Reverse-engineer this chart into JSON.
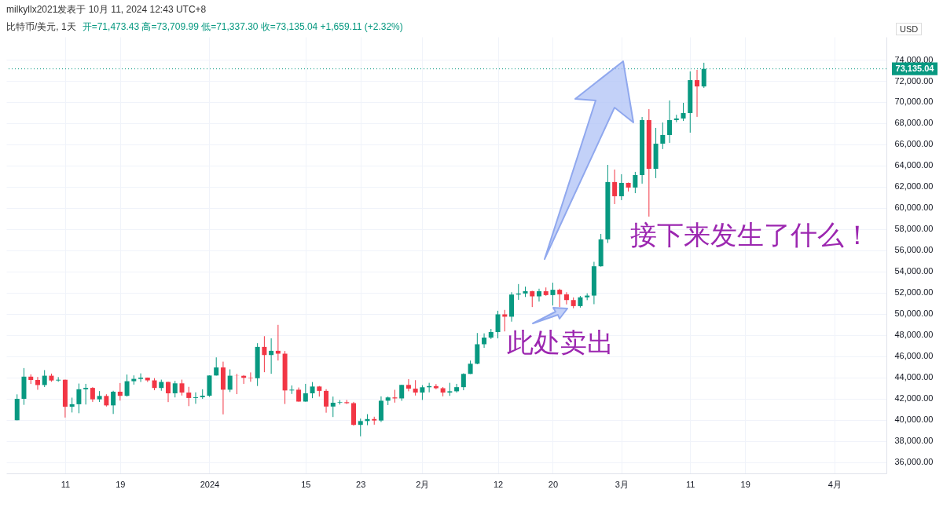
{
  "chart_data": {
    "type": "candlestick",
    "title": "比特币/美元, 1天",
    "subtitle": "开=71,473.43 高=73,709.99 低=71,337.30 收=73,135.04 +1,659.11 (+2.32%)",
    "ylabel": "USD",
    "annotations": [
      "milkyllx2021发表于 10月 11, 2024 12:43 UTC+8",
      "此处卖出",
      "接下来发生了什么！"
    ],
    "x": [
      "2023-12-04",
      "2023-12-05",
      "2023-12-06",
      "2023-12-07",
      "2023-12-08",
      "2023-12-09",
      "2023-12-10",
      "2023-12-11",
      "2023-12-12",
      "2023-12-13",
      "2023-12-14",
      "2023-12-15",
      "2023-12-16",
      "2023-12-17",
      "2023-12-18",
      "2023-12-19",
      "2023-12-20",
      "2023-12-21",
      "2023-12-22",
      "2023-12-23",
      "2023-12-24",
      "2023-12-25",
      "2023-12-26",
      "2023-12-27",
      "2023-12-28",
      "2023-12-29",
      "2023-12-30",
      "2023-12-31",
      "2024-01-01",
      "2024-01-02",
      "2024-01-03",
      "2024-01-04",
      "2024-01-05",
      "2024-01-06",
      "2024-01-07",
      "2024-01-08",
      "2024-01-09",
      "2024-01-10",
      "2024-01-11",
      "2024-01-12",
      "2024-01-13",
      "2024-01-14",
      "2024-01-15",
      "2024-01-16",
      "2024-01-17",
      "2024-01-18",
      "2024-01-19",
      "2024-01-20",
      "2024-01-21",
      "2024-01-22",
      "2024-01-23",
      "2024-01-24",
      "2024-01-25",
      "2024-01-26",
      "2024-01-27",
      "2024-01-28",
      "2024-01-29",
      "2024-01-30",
      "2024-01-31",
      "2024-02-01",
      "2024-02-02",
      "2024-02-03",
      "2024-02-04",
      "2024-02-05",
      "2024-02-06",
      "2024-02-07",
      "2024-02-08",
      "2024-02-09",
      "2024-02-10",
      "2024-02-11",
      "2024-02-12",
      "2024-02-13",
      "2024-02-14",
      "2024-02-15",
      "2024-02-16",
      "2024-02-17",
      "2024-02-18",
      "2024-02-19",
      "2024-02-20",
      "2024-02-21",
      "2024-02-22",
      "2024-02-23",
      "2024-02-24",
      "2024-02-25",
      "2024-02-26",
      "2024-02-27",
      "2024-02-28",
      "2024-02-29",
      "2024-03-01",
      "2024-03-02",
      "2024-03-03",
      "2024-03-04",
      "2024-03-05",
      "2024-03-06",
      "2024-03-07",
      "2024-03-08",
      "2024-03-09",
      "2024-03-10",
      "2024-03-11",
      "2024-03-12",
      "2024-03-13"
    ],
    "ohlc": [
      [
        39970,
        42410,
        39960,
        41990
      ],
      [
        41990,
        44890,
        41420,
        44080
      ],
      [
        44080,
        44300,
        43390,
        43770
      ],
      [
        43770,
        44050,
        42840,
        43290
      ],
      [
        43290,
        44700,
        43100,
        44170
      ],
      [
        44170,
        44370,
        43600,
        43720
      ],
      [
        43720,
        44040,
        43600,
        43790
      ],
      [
        43790,
        43800,
        40220,
        41240
      ],
      [
        41240,
        42100,
        40700,
        41480
      ],
      [
        41480,
        43430,
        40630,
        42890
      ],
      [
        42890,
        43400,
        41450,
        43020
      ],
      [
        43020,
        43090,
        41700,
        41940
      ],
      [
        41940,
        42720,
        41690,
        42260
      ],
      [
        42260,
        42420,
        41260,
        41370
      ],
      [
        41370,
        42750,
        40560,
        42660
      ],
      [
        42660,
        43480,
        41820,
        42270
      ],
      [
        42270,
        44280,
        42200,
        43650
      ],
      [
        43650,
        44200,
        43330,
        43870
      ],
      [
        43870,
        44390,
        43580,
        43990
      ],
      [
        43990,
        44000,
        43580,
        43730
      ],
      [
        43730,
        43940,
        42800,
        43010
      ],
      [
        43010,
        43800,
        42750,
        43580
      ],
      [
        43580,
        43600,
        41680,
        42510
      ],
      [
        42510,
        43680,
        42120,
        43450
      ],
      [
        43450,
        43800,
        42300,
        42580
      ],
      [
        42580,
        43120,
        41300,
        42070
      ],
      [
        42070,
        42600,
        41520,
        42140
      ],
      [
        42140,
        42890,
        41980,
        42280
      ],
      [
        42280,
        44200,
        42180,
        44190
      ],
      [
        44190,
        45900,
        44180,
        44950
      ],
      [
        44950,
        45500,
        40520,
        42850
      ],
      [
        42850,
        44770,
        42630,
        44170
      ],
      [
        44170,
        44340,
        42430,
        44160
      ],
      [
        44160,
        44230,
        43400,
        43970
      ],
      [
        43970,
        44480,
        43600,
        43930
      ],
      [
        43930,
        47240,
        43200,
        46890
      ],
      [
        46890,
        47900,
        44500,
        46120
      ],
      [
        46120,
        47700,
        44350,
        46520
      ],
      [
        46520,
        48970,
        45600,
        46250
      ],
      [
        46250,
        46500,
        41500,
        42780
      ],
      [
        42780,
        43250,
        42450,
        42850
      ],
      [
        42850,
        43060,
        41720,
        41730
      ],
      [
        41730,
        43400,
        41720,
        42510
      ],
      [
        42510,
        43570,
        42050,
        43150
      ],
      [
        43150,
        43200,
        42200,
        42740
      ],
      [
        42740,
        42900,
        40680,
        41260
      ],
      [
        41260,
        42200,
        40270,
        41620
      ],
      [
        41620,
        41870,
        41450,
        41670
      ],
      [
        41670,
        41880,
        41500,
        41580
      ],
      [
        41580,
        41700,
        39450,
        39530
      ],
      [
        39530,
        40120,
        38450,
        39890
      ],
      [
        39890,
        40540,
        39500,
        40080
      ],
      [
        40080,
        40300,
        39550,
        39940
      ],
      [
        39940,
        42220,
        39800,
        41810
      ],
      [
        41810,
        42200,
        41400,
        42120
      ],
      [
        42120,
        42840,
        41630,
        42030
      ],
      [
        42030,
        43320,
        41800,
        43300
      ],
      [
        43300,
        43850,
        42700,
        42950
      ],
      [
        42950,
        43750,
        42300,
        42580
      ],
      [
        42580,
        43280,
        41880,
        43080
      ],
      [
        43080,
        43500,
        42600,
        43190
      ],
      [
        43190,
        43380,
        42890,
        42990
      ],
      [
        42990,
        43100,
        42220,
        42580
      ],
      [
        42580,
        43500,
        42270,
        42700
      ],
      [
        42700,
        43400,
        42580,
        43090
      ],
      [
        43090,
        44400,
        42800,
        44340
      ],
      [
        44340,
        45600,
        44330,
        45300
      ],
      [
        45300,
        48200,
        45250,
        47140
      ],
      [
        47140,
        48170,
        46800,
        47770
      ],
      [
        47770,
        48580,
        47630,
        48290
      ],
      [
        48290,
        50300,
        47700,
        49960
      ],
      [
        49960,
        50380,
        48350,
        49740
      ],
      [
        49740,
        52050,
        49270,
        51830
      ],
      [
        51830,
        52820,
        51330,
        51930
      ],
      [
        51930,
        52580,
        51600,
        52150
      ],
      [
        52150,
        52180,
        50650,
        51660
      ],
      [
        51660,
        52380,
        51170,
        52140
      ],
      [
        52140,
        52500,
        51710,
        51780
      ],
      [
        51780,
        52950,
        50800,
        52280
      ],
      [
        52280,
        52380,
        50640,
        51850
      ],
      [
        51850,
        52050,
        50900,
        51310
      ],
      [
        51310,
        51560,
        50540,
        50740
      ],
      [
        50740,
        51700,
        50600,
        51570
      ],
      [
        51570,
        51950,
        51300,
        51730
      ],
      [
        51730,
        54920,
        50920,
        54500
      ],
      [
        54500,
        57550,
        54460,
        57040
      ],
      [
        57040,
        64070,
        56700,
        62450
      ],
      [
        62450,
        63630,
        60370,
        61110
      ],
      [
        61110,
        63190,
        60740,
        62370
      ],
      [
        62370,
        62400,
        61560,
        61930
      ],
      [
        61930,
        63410,
        61400,
        63110
      ],
      [
        63110,
        68590,
        62300,
        68300
      ],
      [
        68300,
        69330,
        59190,
        63700
      ],
      [
        63700,
        67560,
        62820,
        66070
      ],
      [
        66070,
        68070,
        65560,
        66890
      ],
      [
        66890,
        70150,
        66150,
        68300
      ],
      [
        68300,
        68800,
        68100,
        68450
      ],
      [
        68450,
        69930,
        68220,
        68960
      ],
      [
        68960,
        72890,
        67110,
        72070
      ],
      [
        72070,
        73040,
        68600,
        71473.43
      ],
      [
        71473.43,
        73709.99,
        71337.3,
        73135.04
      ]
    ],
    "colors": [
      "#089981",
      "#089981",
      "#f23645",
      "#f23645",
      "#089981",
      "#f23645",
      "#089981",
      "#f23645",
      "#089981",
      "#089981",
      "#089981",
      "#f23645",
      "#089981",
      "#f23645",
      "#089981",
      "#f23645",
      "#089981",
      "#089981",
      "#089981",
      "#f23645",
      "#f23645",
      "#089981",
      "#f23645",
      "#089981",
      "#f23645",
      "#f23645",
      "#089981",
      "#089981",
      "#089981",
      "#089981",
      "#f23645",
      "#089981",
      "#f23645",
      "#f23645",
      "#f23645",
      "#089981",
      "#f23645",
      "#089981",
      "#f23645",
      "#f23645",
      "#089981",
      "#f23645",
      "#089981",
      "#089981",
      "#f23645",
      "#f23645",
      "#089981",
      "#089981",
      "#f23645",
      "#f23645",
      "#089981",
      "#089981",
      "#f23645",
      "#089981",
      "#089981",
      "#f23645",
      "#089981",
      "#f23645",
      "#f23645",
      "#089981",
      "#089981",
      "#f23645",
      "#f23645",
      "#089981",
      "#089981",
      "#089981",
      "#089981",
      "#089981",
      "#089981",
      "#089981",
      "#089981",
      "#f23645",
      "#089981",
      "#089981",
      "#089981",
      "#f23645",
      "#089981",
      "#f23645",
      "#089981",
      "#f23645",
      "#f23645",
      "#f23645",
      "#089981",
      "#089981",
      "#089981",
      "#089981",
      "#089981",
      "#f23645",
      "#089981",
      "#f23645",
      "#089981",
      "#089981",
      "#f23645",
      "#089981",
      "#089981",
      "#089981",
      "#089981",
      "#089981",
      "#089981",
      "#f23645",
      "#089981"
    ],
    "xlim": [
      "2023-12-03",
      "2024-04-08"
    ],
    "xticks": [
      {
        "value": "2023-12-11",
        "label": "11"
      },
      {
        "value": "2023-12-19",
        "label": "19"
      },
      {
        "value": "2024-01-01",
        "label": "2024"
      },
      {
        "value": "2024-01-15",
        "label": "15"
      },
      {
        "value": "2024-01-23",
        "label": "23"
      },
      {
        "value": "2024-02-01",
        "label": "2月"
      },
      {
        "value": "2024-02-12",
        "label": "12"
      },
      {
        "value": "2024-02-20",
        "label": "20"
      },
      {
        "value": "2024-03-01",
        "label": "3月"
      },
      {
        "value": "2024-03-11",
        "label": "11"
      },
      {
        "value": "2024-03-19",
        "label": "19"
      },
      {
        "value": "2024-04-01",
        "label": "4月"
      }
    ],
    "ylim": [
      34950,
      76150
    ],
    "yticks": [
      {
        "value": 36000,
        "label": "36,000.00"
      },
      {
        "value": 38000,
        "label": "38,000.00"
      },
      {
        "value": 40000,
        "label": "40,000.00"
      },
      {
        "value": 42000,
        "label": "42,000.00"
      },
      {
        "value": 44000,
        "label": "44,000.00"
      },
      {
        "value": 46000,
        "label": "46,000.00"
      },
      {
        "value": 48000,
        "label": "48,000.00"
      },
      {
        "value": 50000,
        "label": "50,000.00"
      },
      {
        "value": 52000,
        "label": "52,000.00"
      },
      {
        "value": 54000,
        "label": "54,000.00"
      },
      {
        "value": 56000,
        "label": "56,000.00"
      },
      {
        "value": 58000,
        "label": "58,000.00"
      },
      {
        "value": 60000,
        "label": "60,000.00"
      },
      {
        "value": 62000,
        "label": "62,000.00"
      },
      {
        "value": 64000,
        "label": "64,000.00"
      },
      {
        "value": 66000,
        "label": "66,000.00"
      },
      {
        "value": 68000,
        "label": "68,000.00"
      },
      {
        "value": 70000,
        "label": "70,000.00"
      },
      {
        "value": 72000,
        "label": "72,000.00"
      },
      {
        "value": 74000,
        "label": "74,000.00"
      }
    ],
    "ref_lines": [
      {
        "axis": "y",
        "value": 73135.04,
        "label": "73,135.04",
        "color": "#089981",
        "line_style": "dotted"
      }
    ],
    "grid": true
  }
}
